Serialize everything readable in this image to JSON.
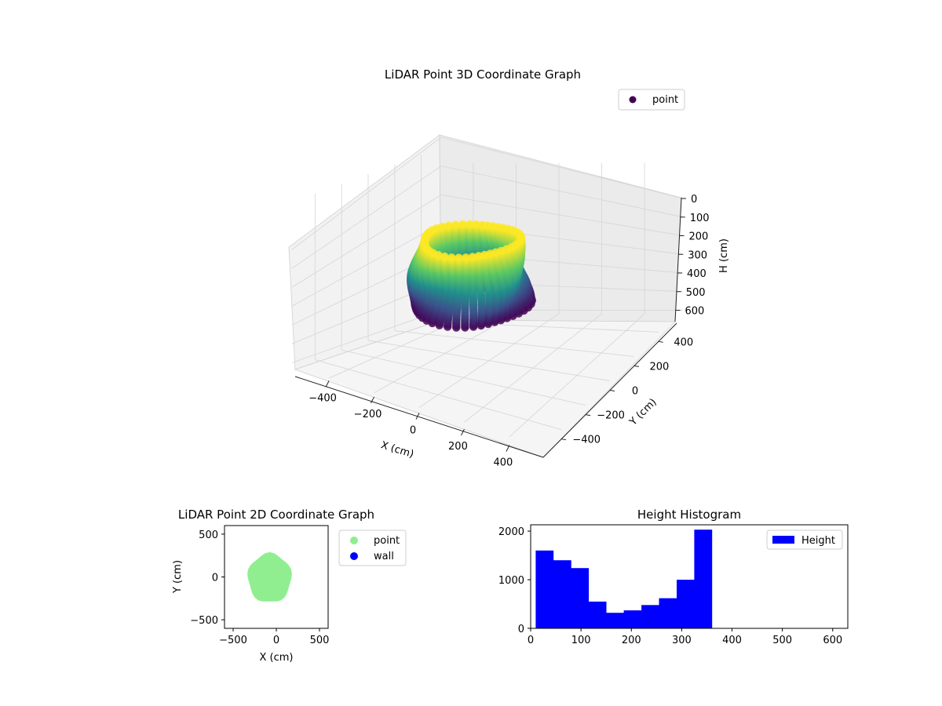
{
  "chart_data": [
    {
      "type": "scatter",
      "projection": "3d",
      "title": "LiDAR Point 3D Coordinate Graph",
      "xlabel": "X (cm)",
      "ylabel": "Y (cm)",
      "zlabel": "H (cm)",
      "xlim": [
        -550,
        550
      ],
      "ylim": [
        -550,
        550
      ],
      "zlim": [
        0,
        640
      ],
      "z_inverted": true,
      "xticks": [
        -400,
        -200,
        0,
        200,
        400
      ],
      "yticks": [
        -400,
        -200,
        0,
        200,
        400
      ],
      "zticks": [
        0,
        100,
        200,
        300,
        400,
        500,
        600
      ],
      "colormap": "viridis",
      "grid": true,
      "legend": {
        "position": "top-right",
        "entries": [
          {
            "label": "point",
            "color": "#440154"
          }
        ]
      },
      "shape_estimate": {
        "center_x": -90,
        "center_y": 0,
        "radius_top": 190,
        "radius_bottom": 230,
        "h_min": 10,
        "h_max": 360
      },
      "series": [
        {
          "name": "point"
        }
      ]
    },
    {
      "type": "scatter",
      "title": "LiDAR Point 2D Coordinate Graph",
      "xlabel": "X (cm)",
      "ylabel": "Y (cm)",
      "xlim": [
        -600,
        600
      ],
      "ylim": [
        -600,
        600
      ],
      "xticks": [
        -500,
        0,
        500
      ],
      "yticks": [
        -500,
        0,
        500
      ],
      "legend": {
        "position": "outside-right",
        "entries": [
          {
            "label": "point",
            "color": "#90ee90"
          },
          {
            "label": "wall",
            "color": "#0000ff"
          }
        ]
      },
      "series": [
        {
          "name": "point",
          "color": "#90ee90",
          "region": {
            "x": [
              -330,
              175
            ],
            "y": [
              -300,
              275
            ]
          }
        },
        {
          "name": "wall",
          "color": "#0000ff",
          "points": []
        }
      ]
    },
    {
      "type": "bar",
      "subtype": "histogram",
      "title": "Height Histogram",
      "xlabel": "",
      "ylabel": "",
      "xlim": [
        0,
        630
      ],
      "ylim": [
        0,
        2130
      ],
      "xticks": [
        0,
        100,
        200,
        300,
        400,
        500,
        600
      ],
      "yticks": [
        0,
        1000,
        2000
      ],
      "color": "#0000ff",
      "legend": {
        "position": "top-right",
        "entries": [
          {
            "label": "Height",
            "color": "#0000ff"
          }
        ]
      },
      "bins": [
        {
          "x0": 10,
          "x1": 45,
          "value": 1600
        },
        {
          "x0": 45,
          "x1": 80,
          "value": 1400
        },
        {
          "x0": 80,
          "x1": 115,
          "value": 1240
        },
        {
          "x0": 115,
          "x1": 150,
          "value": 550
        },
        {
          "x0": 150,
          "x1": 185,
          "value": 320
        },
        {
          "x0": 185,
          "x1": 220,
          "value": 370
        },
        {
          "x0": 220,
          "x1": 255,
          "value": 480
        },
        {
          "x0": 255,
          "x1": 290,
          "value": 620
        },
        {
          "x0": 290,
          "x1": 325,
          "value": 1000
        },
        {
          "x0": 325,
          "x1": 360,
          "value": 2030
        }
      ]
    }
  ]
}
